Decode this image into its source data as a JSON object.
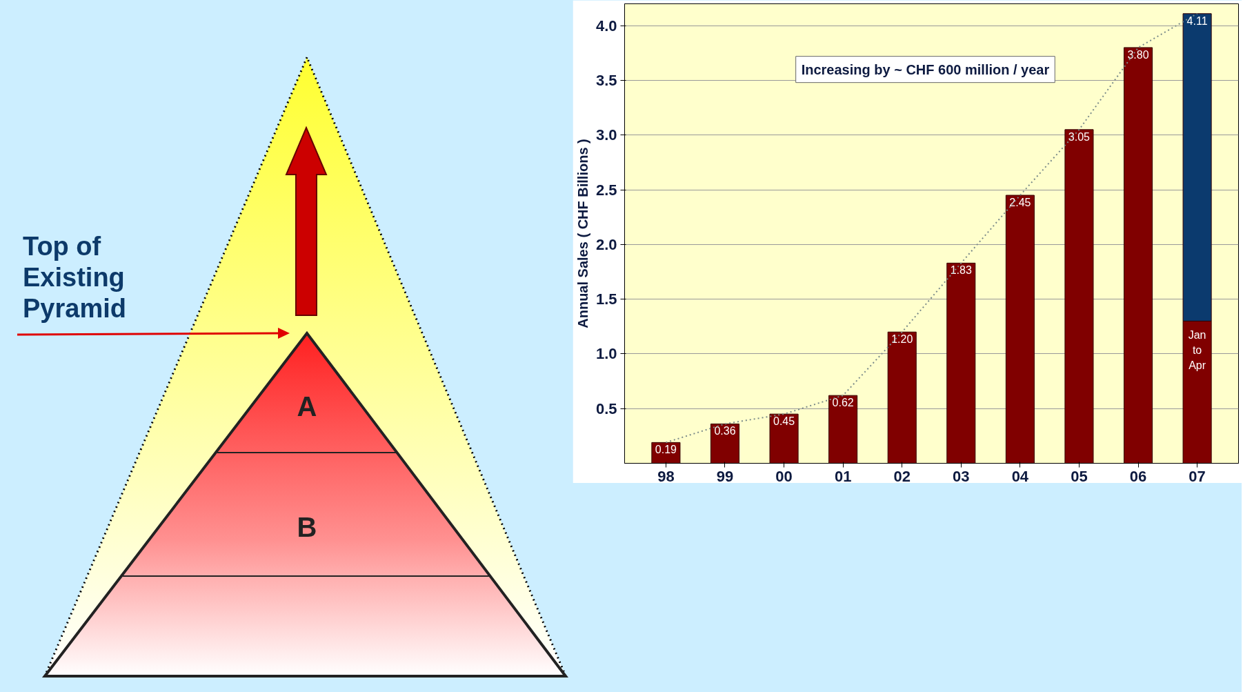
{
  "chart_data": {
    "type": "bar",
    "ylabel": "Annual Sales ( CHF Billions )",
    "categories": [
      "98",
      "99",
      "00",
      "01",
      "02",
      "03",
      "04",
      "05",
      "06",
      "07"
    ],
    "stacked": true,
    "series": [
      {
        "color": "#800000",
        "values": [
          0.19,
          0.36,
          0.45,
          0.62,
          1.2,
          1.83,
          2.45,
          3.05,
          3.8,
          1.3
        ],
        "value_labels": [
          "0.19",
          "0.36",
          "0.45",
          "0.62",
          "1.20",
          "1.83",
          "2.45",
          "3.05",
          "3.80",
          null
        ]
      },
      {
        "color": "#0b3a6e",
        "values": [
          null,
          null,
          null,
          null,
          null,
          null,
          null,
          null,
          null,
          2.81
        ]
      },
      {
        "type": "line",
        "color": "#7a8a8a",
        "line_style": "dotted",
        "values": [
          0.19,
          0.36,
          0.45,
          0.62,
          1.2,
          1.83,
          2.45,
          3.05,
          3.8,
          4.11
        ]
      }
    ],
    "totals": [
      null,
      null,
      null,
      null,
      null,
      null,
      null,
      null,
      null,
      "4.11"
    ],
    "ylim": [
      0,
      4.2
    ],
    "yticks": [
      0.5,
      {
        "value": 1,
        "label": "1.0"
      },
      1.5,
      {
        "value": 2,
        "label": "2.0"
      },
      2.5,
      {
        "value": 3,
        "label": "3.0"
      },
      3.5,
      {
        "value": 4,
        "label": "4.0"
      }
    ],
    "grid": "y",
    "annotations": [
      "Top of Existing Pyramid",
      "A",
      "B",
      "Increasing by ~ CHF 600 million / year",
      "Jan to Apr"
    ]
  }
}
